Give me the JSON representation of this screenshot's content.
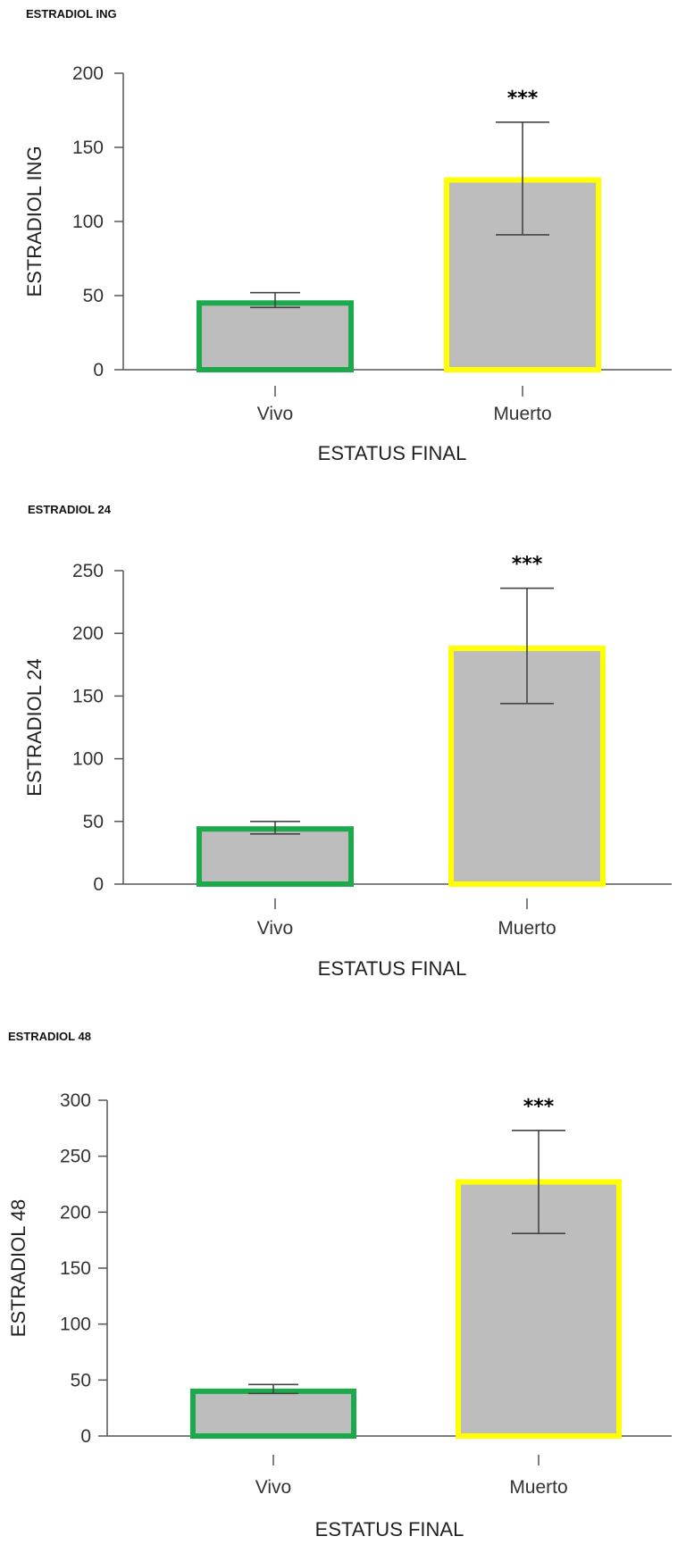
{
  "chart_data": [
    {
      "type": "bar",
      "title": "ESTRADIOL ING",
      "xlabel": "ESTATUS FINAL",
      "ylabel": "ESTRADIOL ING",
      "ylim": [
        0,
        200
      ],
      "yticks": [
        0,
        50,
        100,
        150,
        200
      ],
      "categories": [
        "Vivo",
        "Muerto"
      ],
      "values": [
        45,
        128
      ],
      "error_low": [
        42,
        91
      ],
      "error_high": [
        52,
        167
      ],
      "annotations": [
        "",
        "***"
      ],
      "bar_fill": "#bdbdbd",
      "bar_outline_colors": [
        "#1ba94c",
        "#ffff00"
      ],
      "grid": false
    },
    {
      "type": "bar",
      "title": "ESTRADIOL 24",
      "xlabel": "ESTATUS FINAL",
      "ylabel": "ESTRADIOL 24",
      "ylim": [
        0,
        250
      ],
      "yticks": [
        0,
        50,
        100,
        150,
        200,
        250
      ],
      "categories": [
        "Vivo",
        "Muerto"
      ],
      "values": [
        44,
        188
      ],
      "error_low": [
        40,
        144
      ],
      "error_high": [
        50,
        236
      ],
      "annotations": [
        "",
        "***"
      ],
      "bar_fill": "#bdbdbd",
      "bar_outline_colors": [
        "#1ba94c",
        "#ffff00"
      ],
      "grid": false
    },
    {
      "type": "bar",
      "title": "ESTRADIOL 48",
      "xlabel": "ESTATUS FINAL",
      "ylabel": "ESTRADIOL 48",
      "ylim": [
        0,
        300
      ],
      "yticks": [
        0,
        50,
        100,
        150,
        200,
        250,
        300
      ],
      "categories": [
        "Vivo",
        "Muerto"
      ],
      "values": [
        40,
        227
      ],
      "error_low": [
        38,
        181
      ],
      "error_high": [
        46,
        273
      ],
      "annotations": [
        "",
        "***"
      ],
      "bar_fill": "#bdbdbd",
      "bar_outline_colors": [
        "#1ba94c",
        "#ffff00"
      ],
      "grid": false
    }
  ]
}
